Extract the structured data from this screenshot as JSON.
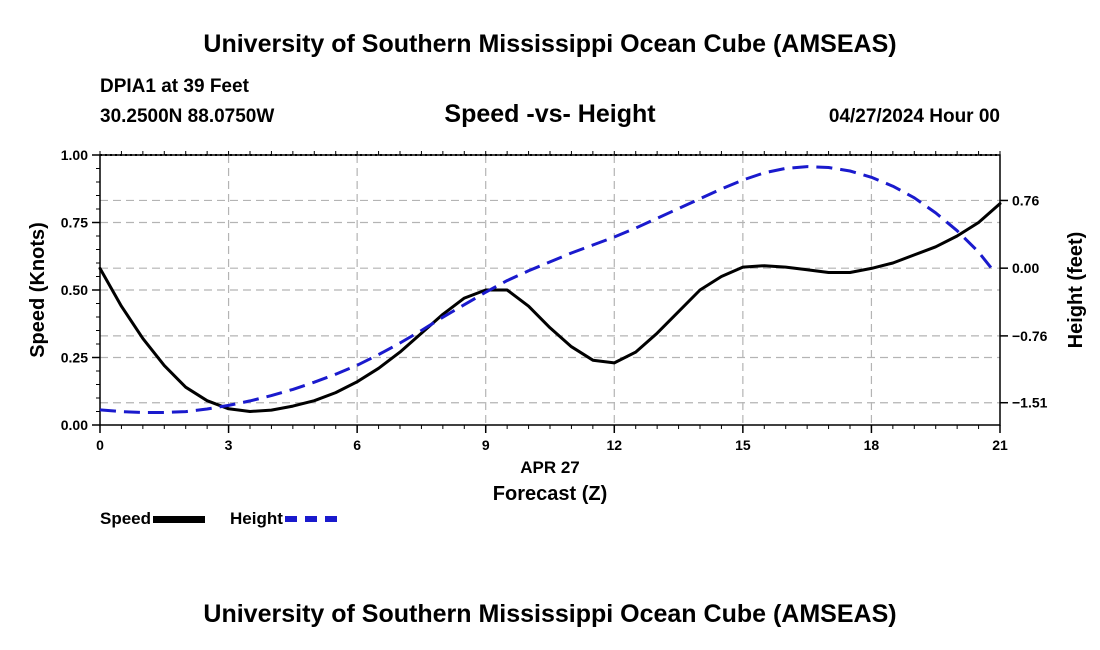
{
  "header": {
    "title": "University of Southern Mississippi Ocean Cube (AMSEAS)",
    "station": "DPIA1 at 39 Feet",
    "coords": "30.2500N  88.0750W",
    "subtitle": "Speed -vs- Height",
    "datetime": "04/27/2024 Hour 00"
  },
  "footer": {
    "title": "University of Southern Mississippi Ocean Cube (AMSEAS)"
  },
  "legend": {
    "speed": "Speed",
    "height": "Height"
  },
  "colors": {
    "speed": "#000000",
    "height": "#1a1acd",
    "grid": "#b4b4b4"
  },
  "chart_data": {
    "type": "line",
    "title": "Speed -vs- Height",
    "xlabel": "Forecast (Z)",
    "xdate": "APR 27",
    "ylabel": "Speed (Knots)",
    "y2label": "Height (feet)",
    "xlim": [
      0,
      21
    ],
    "ylim": [
      0,
      1
    ],
    "y2lim": [
      -1.76,
      1.27
    ],
    "x_ticks": [
      0,
      3,
      6,
      9,
      12,
      15,
      18,
      21
    ],
    "x_tick_labels": [
      "0",
      "3",
      "6",
      "9",
      "12",
      "15",
      "18",
      "21"
    ],
    "y_ticks": [
      0,
      0.25,
      0.5,
      0.75,
      1.0
    ],
    "y_tick_labels": [
      "0.00",
      "0.25",
      "0.50",
      "0.75",
      "1.00"
    ],
    "y2_ticks": [
      -1.51,
      -0.76,
      0.0,
      0.76
    ],
    "y2_tick_labels": [
      "−1.51",
      "−0.76",
      "0.00",
      "0.76"
    ],
    "grid": true,
    "series": [
      {
        "name": "Speed",
        "axis": "left",
        "style": "solid",
        "x": [
          0,
          0.5,
          1,
          1.5,
          2,
          2.5,
          3,
          3.5,
          4,
          4.5,
          5,
          5.5,
          6,
          6.5,
          7,
          7.5,
          8,
          8.5,
          9,
          9.5,
          10,
          10.5,
          11,
          11.5,
          12,
          12.5,
          13,
          13.5,
          14,
          14.5,
          15,
          15.5,
          16,
          16.5,
          17,
          17.5,
          18,
          18.5,
          19,
          19.5,
          20,
          20.5,
          21
        ],
        "values": [
          0.58,
          0.44,
          0.32,
          0.22,
          0.14,
          0.09,
          0.06,
          0.05,
          0.055,
          0.07,
          0.09,
          0.12,
          0.16,
          0.21,
          0.27,
          0.34,
          0.41,
          0.47,
          0.5,
          0.5,
          0.44,
          0.36,
          0.29,
          0.24,
          0.23,
          0.27,
          0.34,
          0.42,
          0.5,
          0.55,
          0.585,
          0.59,
          0.585,
          0.575,
          0.565,
          0.565,
          0.58,
          0.6,
          0.63,
          0.66,
          0.7,
          0.75,
          0.82
        ]
      },
      {
        "name": "Height",
        "axis": "right",
        "style": "dashed",
        "x": [
          0,
          0.5,
          1,
          1.5,
          2,
          2.5,
          3,
          3.5,
          4,
          4.5,
          5,
          5.5,
          6,
          6.5,
          7,
          7.5,
          8,
          8.5,
          9,
          9.5,
          10,
          10.5,
          11,
          11.5,
          12,
          12.5,
          13,
          13.5,
          14,
          14.5,
          15,
          15.5,
          16,
          16.5,
          17,
          17.5,
          18,
          18.5,
          19,
          19.5,
          20,
          20.5,
          20.8
        ],
        "values": [
          -1.59,
          -1.61,
          -1.62,
          -1.62,
          -1.61,
          -1.58,
          -1.54,
          -1.49,
          -1.43,
          -1.36,
          -1.28,
          -1.19,
          -1.09,
          -0.97,
          -0.84,
          -0.7,
          -0.55,
          -0.41,
          -0.27,
          -0.14,
          -0.03,
          0.07,
          0.17,
          0.26,
          0.35,
          0.45,
          0.56,
          0.67,
          0.78,
          0.89,
          0.99,
          1.07,
          1.12,
          1.14,
          1.13,
          1.09,
          1.02,
          0.92,
          0.79,
          0.62,
          0.42,
          0.18,
          0.0
        ]
      }
    ]
  }
}
